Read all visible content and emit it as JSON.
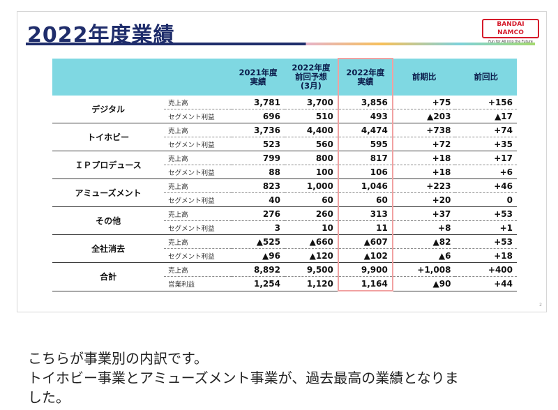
{
  "slide": {
    "title": "2022年度業績",
    "logo_text": "BANDAI NAMCO",
    "logo_tagline": "Fun for All into the Future",
    "page_number": "2"
  },
  "table": {
    "headers": {
      "col_2021": "2021年度\n実績",
      "col_forecast": "2022年度\n前回予想\n(3月)",
      "col_2022": "2022年度\n実績",
      "col_yoy": "前期比",
      "col_vs_prev": "前回比"
    },
    "rows": [
      {
        "segment": "デジタル",
        "metrics": [
          {
            "label": "売上高",
            "v2021": "3,781",
            "forecast": "3,700",
            "v2022": "3,856",
            "yoy": "+75",
            "vs_prev": "+156"
          },
          {
            "label": "セグメント利益",
            "v2021": "696",
            "forecast": "510",
            "v2022": "493",
            "yoy": "▲203",
            "vs_prev": "▲17"
          }
        ]
      },
      {
        "segment": "トイホビー",
        "metrics": [
          {
            "label": "売上高",
            "v2021": "3,736",
            "forecast": "4,400",
            "v2022": "4,474",
            "yoy": "+738",
            "vs_prev": "+74"
          },
          {
            "label": "セグメント利益",
            "v2021": "523",
            "forecast": "560",
            "v2022": "595",
            "yoy": "+72",
            "vs_prev": "+35"
          }
        ]
      },
      {
        "segment": "ＩＰプロデュース",
        "metrics": [
          {
            "label": "売上高",
            "v2021": "799",
            "forecast": "800",
            "v2022": "817",
            "yoy": "+18",
            "vs_prev": "+17"
          },
          {
            "label": "セグメント利益",
            "v2021": "88",
            "forecast": "100",
            "v2022": "106",
            "yoy": "+18",
            "vs_prev": "+6"
          }
        ]
      },
      {
        "segment": "アミューズメント",
        "metrics": [
          {
            "label": "売上高",
            "v2021": "823",
            "forecast": "1,000",
            "v2022": "1,046",
            "yoy": "+223",
            "vs_prev": "+46"
          },
          {
            "label": "セグメント利益",
            "v2021": "40",
            "forecast": "60",
            "v2022": "60",
            "yoy": "+20",
            "vs_prev": "0"
          }
        ]
      },
      {
        "segment": "その他",
        "metrics": [
          {
            "label": "売上高",
            "v2021": "276",
            "forecast": "260",
            "v2022": "313",
            "yoy": "+37",
            "vs_prev": "+53"
          },
          {
            "label": "セグメント利益",
            "v2021": "3",
            "forecast": "10",
            "v2022": "11",
            "yoy": "+8",
            "vs_prev": "+1"
          }
        ]
      },
      {
        "segment": "全社消去",
        "metrics": [
          {
            "label": "売上高",
            "v2021": "▲525",
            "forecast": "▲660",
            "v2022": "▲607",
            "yoy": "▲82",
            "vs_prev": "+53"
          },
          {
            "label": "セグメント利益",
            "v2021": "▲96",
            "forecast": "▲120",
            "v2022": "▲102",
            "yoy": "▲6",
            "vs_prev": "+18"
          }
        ]
      },
      {
        "segment": "合計",
        "metrics": [
          {
            "label": "売上高",
            "v2021": "8,892",
            "forecast": "9,500",
            "v2022": "9,900",
            "yoy": "+1,008",
            "vs_prev": "+400"
          },
          {
            "label": "営業利益",
            "v2021": "1,254",
            "forecast": "1,120",
            "v2022": "1,164",
            "yoy": "▲90",
            "vs_prev": "+44"
          }
        ]
      }
    ]
  },
  "caption": {
    "line1": "こちらが事業別の内訳です。",
    "line2": "トイホビー事業とアミューズメント事業が、過去最高の業績となりま",
    "line3": "した。"
  }
}
